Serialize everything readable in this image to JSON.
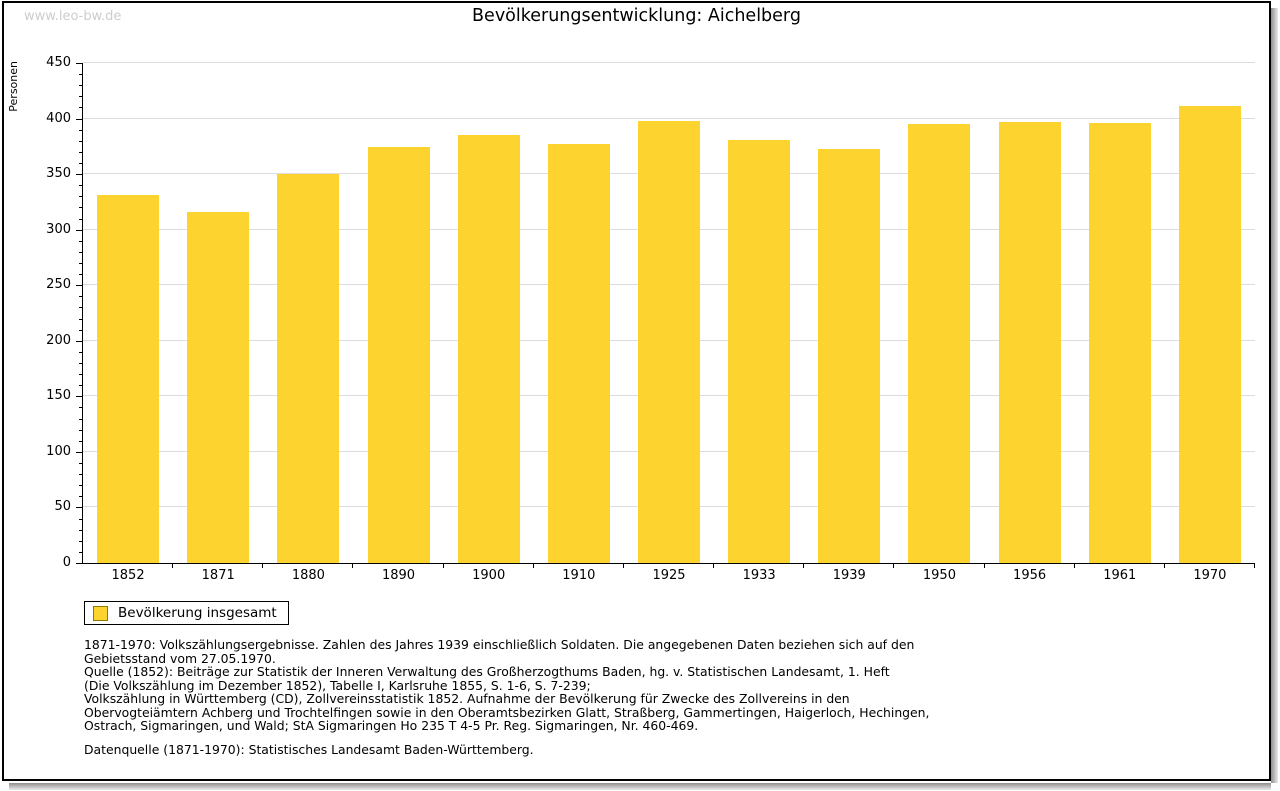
{
  "page": {
    "watermark": "www.leo-bw.de",
    "title": "Bevölkerungsentwicklung:  Aichelberg"
  },
  "chart_data": {
    "type": "bar",
    "title": "Bevölkerungsentwicklung: Aichelberg",
    "xlabel": "",
    "ylabel": "Personen",
    "categories": [
      "1852",
      "1871",
      "1880",
      "1890",
      "1900",
      "1910",
      "1925",
      "1933",
      "1939",
      "1950",
      "1956",
      "1961",
      "1970"
    ],
    "series": [
      {
        "name": "Bevölkerung insgesamt",
        "values": [
          331,
          316,
          350,
          374,
          385,
          377,
          398,
          381,
          373,
          395,
          397,
          396,
          411
        ]
      }
    ],
    "ylim": [
      0,
      450
    ],
    "ytick_step": 50,
    "yminor_step": 10,
    "grid": true,
    "legend_position": "bottom-left",
    "bar_color": "#fcd32f",
    "grid_color": "#dcdcdc"
  },
  "legend": {
    "label": "Bevölkerung insgesamt",
    "swatch_color": "#fcd32f"
  },
  "notes": {
    "paragraph1_lines": [
      "1871-1970: Volkszählungsergebnisse. Zahlen des Jahres 1939 einschließlich Soldaten. Die angegebenen Daten beziehen sich auf den",
      "Gebietsstand vom 27.05.1970.",
      "Quelle (1852): Beiträge zur Statistik der Inneren Verwaltung des Großherzogthums Baden, hg. v. Statistischen Landesamt, 1. Heft",
      "(Die Volkszählung im Dezember 1852), Tabelle I, Karlsruhe 1855, S. 1-6, S. 7-239;",
      "Volkszählung in Württemberg (CD), Zollvereinsstatistik 1852. Aufnahme der Bevölkerung für Zwecke des Zollvereins in den",
      "Obervogteiämtern Achberg und Trochtelfingen sowie in den Oberamtsbezirken Glatt, Straßberg, Gammertingen, Haigerloch, Hechingen,",
      "Ostrach, Sigmaringen, und Wald; StA Sigmaringen Ho 235 T 4-5 Pr. Reg. Sigmaringen, Nr. 460-469."
    ],
    "datenquelle": "Datenquelle (1871-1970): Statistisches Landesamt Baden-Württemberg."
  }
}
